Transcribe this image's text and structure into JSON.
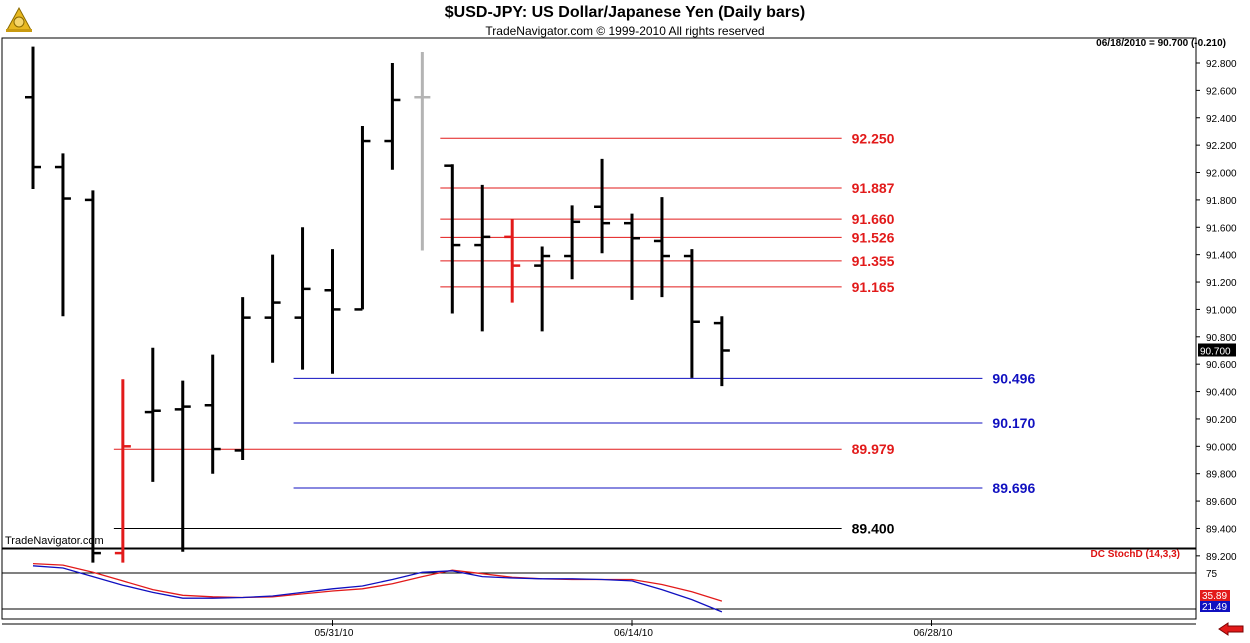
{
  "header": {
    "title": "$USD-JPY:  US Dollar/Japanese Yen  (Daily bars)",
    "copyright": "TradeNavigator.com © 1999-2010 All rights reserved",
    "status": "06/18/2010 = 90.700 (-0.210)"
  },
  "watermark": "TradeNavigator.com",
  "study_label": "DC StochD (14,3,3)",
  "icons": {
    "logo": "gold-sextant-icon",
    "nav": "red-left-arrow-icon"
  },
  "colors": {
    "up_bar": "#000000",
    "inside_bar": "#e21a1a",
    "gap_bar": "#b4b4b4",
    "resistance": "#e21a1a",
    "support": "#1010c0",
    "key": "#000000",
    "stoch_k": "#1010c0",
    "stoch_d": "#e21a1a"
  },
  "chart_data": {
    "type": "ohlc",
    "price_axis": {
      "ylim": [
        89.15,
        92.92
      ],
      "ticks": [
        "92.800",
        "92.600",
        "92.400",
        "92.200",
        "92.000",
        "91.800",
        "91.600",
        "91.400",
        "91.200",
        "91.000",
        "90.800",
        "90.600",
        "90.400",
        "90.200",
        "90.000",
        "89.800",
        "89.600",
        "89.400",
        "89.200"
      ],
      "last_price": "90.700"
    },
    "x_ticks": [
      {
        "label": "05/31/10",
        "bar": 10
      },
      {
        "label": "06/14/10",
        "bar": 20
      },
      {
        "label": "06/28/10",
        "bar": 30
      }
    ],
    "bars": [
      {
        "o": 92.55,
        "h": 92.92,
        "l": 91.88,
        "c": 92.04,
        "color": "black"
      },
      {
        "o": 92.04,
        "h": 92.14,
        "l": 90.95,
        "c": 91.81,
        "color": "black"
      },
      {
        "o": 91.8,
        "h": 91.87,
        "l": 89.15,
        "c": 89.22,
        "color": "black"
      },
      {
        "o": 89.22,
        "h": 90.49,
        "l": 89.15,
        "c": 90.0,
        "color": "red"
      },
      {
        "o": 90.25,
        "h": 90.72,
        "l": 89.74,
        "c": 90.26,
        "color": "black"
      },
      {
        "o": 90.27,
        "h": 90.48,
        "l": 89.23,
        "c": 90.29,
        "color": "black"
      },
      {
        "o": 90.3,
        "h": 90.67,
        "l": 89.8,
        "c": 89.98,
        "color": "black"
      },
      {
        "o": 89.97,
        "h": 91.09,
        "l": 89.9,
        "c": 90.94,
        "color": "black"
      },
      {
        "o": 90.94,
        "h": 91.4,
        "l": 90.61,
        "c": 91.05,
        "color": "black"
      },
      {
        "o": 90.94,
        "h": 91.6,
        "l": 90.56,
        "c": 91.15,
        "color": "black"
      },
      {
        "o": 91.14,
        "h": 91.44,
        "l": 90.53,
        "c": 91.0,
        "color": "black"
      },
      {
        "o": 91.0,
        "h": 92.34,
        "l": 91.0,
        "c": 92.23,
        "color": "black"
      },
      {
        "o": 92.23,
        "h": 92.8,
        "l": 92.02,
        "c": 92.53,
        "color": "black"
      },
      {
        "o": 92.55,
        "h": 92.88,
        "l": 91.43,
        "c": 92.55,
        "color": "gray"
      },
      {
        "o": 92.05,
        "h": 92.06,
        "l": 90.97,
        "c": 91.47,
        "color": "black"
      },
      {
        "o": 91.47,
        "h": 91.91,
        "l": 90.84,
        "c": 91.53,
        "color": "black"
      },
      {
        "o": 91.53,
        "h": 91.66,
        "l": 91.05,
        "c": 91.32,
        "color": "red"
      },
      {
        "o": 91.32,
        "h": 91.46,
        "l": 90.84,
        "c": 91.39,
        "color": "black"
      },
      {
        "o": 91.39,
        "h": 91.76,
        "l": 91.22,
        "c": 91.64,
        "color": "black"
      },
      {
        "o": 91.75,
        "h": 92.1,
        "l": 91.41,
        "c": 91.63,
        "color": "black"
      },
      {
        "o": 91.63,
        "h": 91.7,
        "l": 91.07,
        "c": 91.52,
        "color": "black"
      },
      {
        "o": 91.5,
        "h": 91.82,
        "l": 91.09,
        "c": 91.39,
        "color": "black"
      },
      {
        "o": 91.39,
        "h": 91.44,
        "l": 90.5,
        "c": 90.91,
        "color": "black"
      },
      {
        "o": 90.9,
        "h": 90.95,
        "l": 90.44,
        "c": 90.7,
        "color": "black"
      }
    ],
    "levels": [
      {
        "value": 92.25,
        "label": "92.250",
        "color": "red",
        "from_bar": 13.6,
        "to_bar": 27.0
      },
      {
        "value": 91.887,
        "label": "91.887",
        "color": "red",
        "from_bar": 13.6,
        "to_bar": 27.0
      },
      {
        "value": 91.66,
        "label": "91.660",
        "color": "red",
        "from_bar": 13.6,
        "to_bar": 27.0
      },
      {
        "value": 91.526,
        "label": "91.526",
        "color": "red",
        "from_bar": 13.6,
        "to_bar": 27.0
      },
      {
        "value": 91.355,
        "label": "91.355",
        "color": "red",
        "from_bar": 13.6,
        "to_bar": 27.0
      },
      {
        "value": 91.165,
        "label": "91.165",
        "color": "red",
        "from_bar": 13.6,
        "to_bar": 27.0
      },
      {
        "value": 90.496,
        "label": "90.496",
        "color": "blue",
        "from_bar": 8.7,
        "to_bar": 31.7
      },
      {
        "value": 90.17,
        "label": "90.170",
        "color": "blue",
        "from_bar": 8.7,
        "to_bar": 31.7
      },
      {
        "value": 89.979,
        "label": "89.979",
        "color": "red",
        "from_bar": 2.7,
        "to_bar": 27.0
      },
      {
        "value": 89.696,
        "label": "89.696",
        "color": "blue",
        "from_bar": 8.7,
        "to_bar": 31.7
      },
      {
        "value": 89.4,
        "label": "89.400",
        "color": "black",
        "from_bar": 2.7,
        "to_bar": 27.0
      }
    ],
    "stochastic": {
      "ylim": [
        0,
        100
      ],
      "ticks": [
        "75"
      ],
      "levels": [
        75,
        25
      ],
      "k_label": "21.49",
      "d_label": "35.89",
      "k": [
        85,
        82,
        70,
        58,
        48,
        40,
        40,
        41,
        43,
        48,
        53,
        57,
        66,
        76,
        78,
        70,
        68,
        67,
        67,
        66,
        64,
        52,
        38,
        21
      ],
      "d": [
        88,
        86,
        76,
        64,
        52,
        44,
        42,
        41,
        42,
        46,
        50,
        53,
        60,
        70,
        79,
        74,
        69,
        67,
        66,
        66,
        66,
        59,
        49,
        36
      ]
    }
  }
}
